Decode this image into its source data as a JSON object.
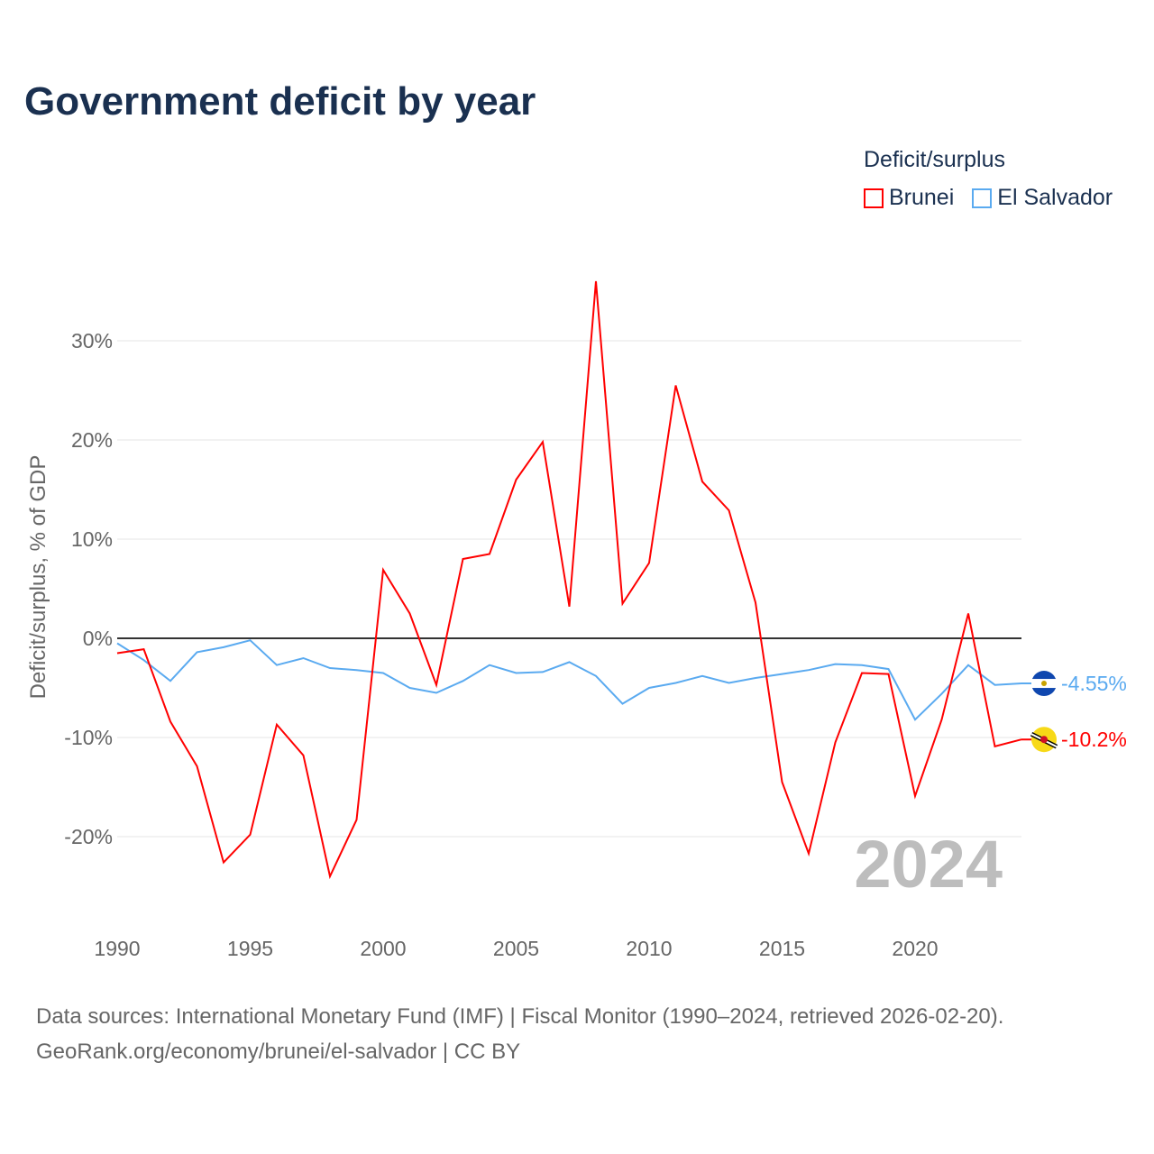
{
  "title": "Government deficit by year",
  "legend_title": "Deficit/surplus",
  "sources": [
    "Data sources: International Monetary Fund (IMF) | Fiscal Monitor (1990–2024, retrieved 2026-02-20).",
    "GeoRank.org/economy/brunei/el-salvador | CC BY"
  ],
  "chart_data": {
    "type": "line",
    "title": "Government deficit by year",
    "xlabel": "",
    "ylabel": "Deficit/surplus, % of GDP",
    "xlim": [
      1990,
      2024
    ],
    "ylim": [
      -25,
      37
    ],
    "x_ticks": [
      1990,
      1995,
      2000,
      2005,
      2010,
      2015,
      2020
    ],
    "y_ticks": [
      -20,
      -10,
      0,
      10,
      20,
      30
    ],
    "y_tick_labels": [
      "-20%",
      "-10%",
      "0%",
      "10%",
      "20%",
      "30%"
    ],
    "x_tick_labels": [
      "1990",
      "1995",
      "2000",
      "2005",
      "2010",
      "2015",
      "2020"
    ],
    "grid": true,
    "legend_position": "top-right",
    "year_watermark": "2024",
    "x": [
      1990,
      1991,
      1992,
      1993,
      1994,
      1995,
      1996,
      1997,
      1998,
      1999,
      2000,
      2001,
      2002,
      2003,
      2004,
      2005,
      2006,
      2007,
      2008,
      2009,
      2010,
      2011,
      2012,
      2013,
      2014,
      2015,
      2016,
      2017,
      2018,
      2019,
      2020,
      2021,
      2022,
      2023,
      2024
    ],
    "series": [
      {
        "name": "Brunei",
        "color": "#ff0000",
        "end_label": "-10.2%",
        "values": [
          -1.5,
          -1.1,
          -8.4,
          -12.9,
          -22.6,
          -19.8,
          -8.7,
          -11.8,
          -24.0,
          -18.3,
          6.9,
          2.5,
          -4.7,
          8.0,
          8.5,
          16.0,
          19.8,
          3.2,
          36.0,
          3.5,
          7.6,
          25.5,
          15.8,
          12.9,
          3.6,
          -14.5,
          -21.7,
          -10.5,
          -3.5,
          -3.6,
          -15.9,
          -8.2,
          2.5,
          -10.9,
          -10.2
        ]
      },
      {
        "name": "El Salvador",
        "color": "#5aaaf0",
        "end_label": "-4.55%",
        "values": [
          -0.5,
          -2.2,
          -4.3,
          -1.4,
          -0.9,
          -0.2,
          -2.7,
          -2.0,
          -3.0,
          -3.2,
          -3.5,
          -5.0,
          -5.5,
          -4.3,
          -2.7,
          -3.5,
          -3.4,
          -2.4,
          -3.8,
          -6.6,
          -5.0,
          -4.5,
          -3.8,
          -4.5,
          -4.0,
          -3.6,
          -3.2,
          -2.6,
          -2.7,
          -3.1,
          -8.2,
          -5.6,
          -2.7,
          -4.7,
          -4.55
        ]
      }
    ]
  }
}
